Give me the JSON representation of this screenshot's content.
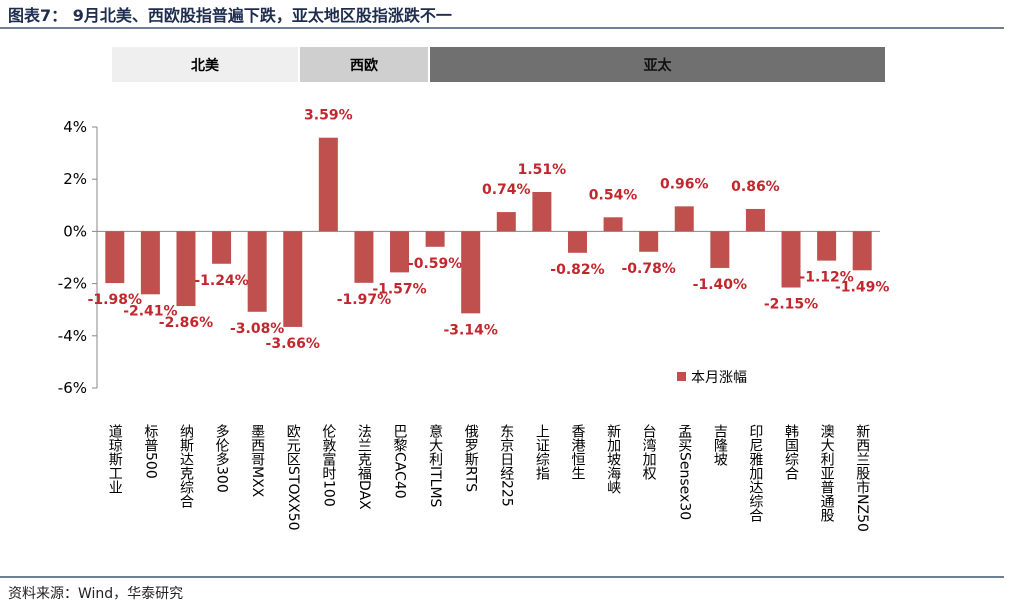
{
  "figure": {
    "title": "图表7： 9月北美、西欧股指普遍下跌，亚太地区股指涨跌不一",
    "source": "资料来源：Wind，华泰研究",
    "regions": {
      "north_america": "北美",
      "western_europe": "西欧",
      "asia_pacific": "亚太"
    },
    "colors": {
      "bar": "#c0504d",
      "label": "#c0282d",
      "axis": "#888888"
    }
  },
  "chart_data": {
    "type": "bar",
    "title": "",
    "xlabel": "",
    "ylabel": "",
    "ylim": [
      -6,
      4
    ],
    "yticks": [
      4,
      2,
      0,
      -2,
      -4,
      -6
    ],
    "ytick_labels": [
      "4%",
      "2%",
      "0%",
      "-2%",
      "-4%",
      "-6%"
    ],
    "legend": "本月涨幅",
    "legend_position": "lower-right",
    "categories": [
      "道琼斯工业",
      "标普500",
      "纳斯达克综合",
      "多伦多300",
      "墨西哥MXX",
      "欧元区STOXX50",
      "伦敦富时100",
      "法兰克福DAX",
      "巴黎CAC40",
      "意大利ITLMS",
      "俄罗斯RTS",
      "东京日经225",
      "上证综指",
      "香港恒生",
      "新加坡海峡",
      "台湾加权",
      "孟买Sensex30",
      "吉隆坡",
      "印尼雅加达综合",
      "韩国综合",
      "澳大利亚普通股",
      "新西兰股市NZ50"
    ],
    "values": [
      -1.98,
      -2.41,
      -2.86,
      -1.24,
      -3.08,
      -3.66,
      3.59,
      -1.97,
      -1.57,
      -0.59,
      -3.14,
      0.74,
      1.51,
      -0.82,
      0.54,
      -0.78,
      0.96,
      -1.4,
      0.86,
      -2.15,
      -1.12,
      -1.49
    ],
    "value_labels": [
      "-1.98%",
      "-2.41%",
      "-2.86%",
      "-1.24%",
      "-3.08%",
      "-3.66%",
      "3.59%",
      "-1.97%",
      "-1.57%",
      "-0.59%",
      "-3.14%",
      "0.74%",
      "1.51%",
      "-0.82%",
      "0.54%",
      "-0.78%",
      "0.96%",
      "-1.40%",
      "0.86%",
      "-2.15%",
      "-1.12%",
      "-1.49%"
    ]
  }
}
